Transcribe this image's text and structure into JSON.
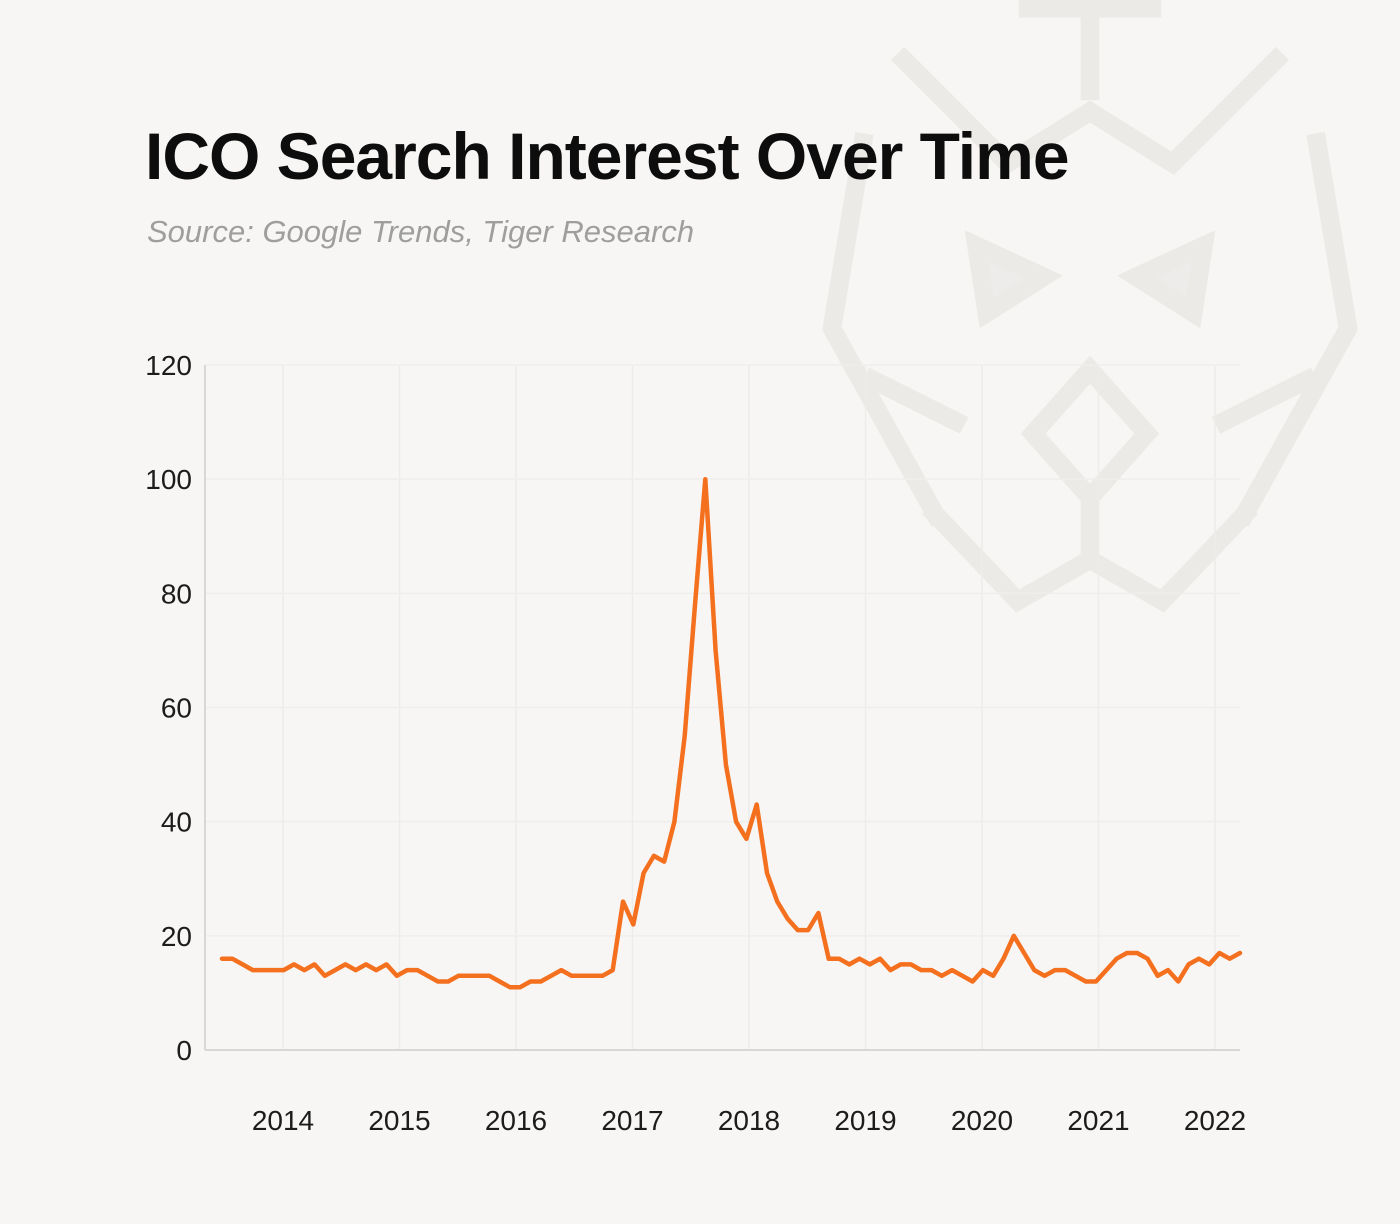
{
  "header": {
    "title": "ICO Search Interest Over Time",
    "source": "Source: Google Trends, Tiger Research"
  },
  "watermark": {
    "name": "tiger-research-logo",
    "color": "#eceae6"
  },
  "chart_data": {
    "type": "line",
    "title": "ICO Search Interest Over Time",
    "subtitle": "Source: Google Trends, Tiger Research",
    "series_name": "ICO search interest (Google Trends index)",
    "x_start": "2014-01",
    "x_end": "2022-04",
    "x_tick_labels": [
      "2014",
      "2015",
      "2016",
      "2017",
      "2018",
      "2019",
      "2020",
      "2021",
      "2022"
    ],
    "y_ticks": [
      0,
      20,
      40,
      60,
      80,
      100,
      120
    ],
    "ylim": [
      0,
      120
    ],
    "grid": true,
    "legend": "none",
    "line_color": "#f4701f",
    "values": [
      16,
      16,
      15,
      14,
      14,
      14,
      14,
      15,
      14,
      15,
      13,
      14,
      15,
      14,
      15,
      14,
      15,
      13,
      14,
      14,
      13,
      12,
      12,
      13,
      13,
      13,
      13,
      12,
      11,
      11,
      12,
      12,
      13,
      14,
      13,
      13,
      13,
      13,
      14,
      26,
      22,
      31,
      34,
      33,
      40,
      55,
      78,
      100,
      70,
      50,
      40,
      37,
      43,
      31,
      26,
      23,
      21,
      21,
      24,
      16,
      16,
      15,
      16,
      15,
      16,
      14,
      15,
      15,
      14,
      14,
      13,
      14,
      13,
      12,
      14,
      13,
      16,
      20,
      17,
      14,
      13,
      14,
      14,
      13,
      12,
      12,
      14,
      16,
      17,
      17,
      16,
      13,
      14,
      12,
      15,
      16,
      15,
      17,
      16,
      17
    ]
  }
}
